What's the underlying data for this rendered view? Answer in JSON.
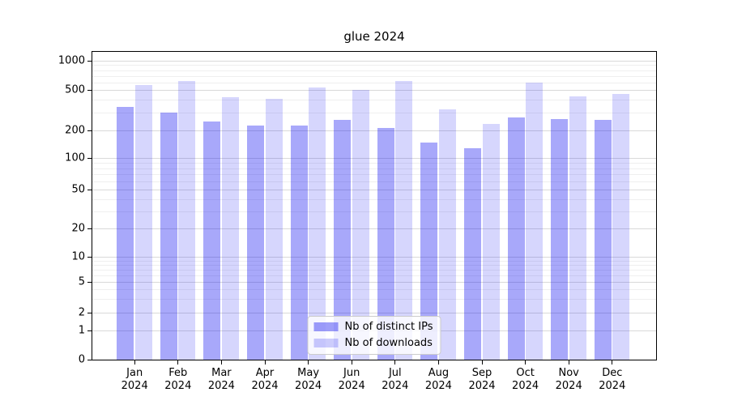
{
  "title": "glue 2024",
  "chart_data": {
    "type": "bar",
    "title": "glue 2024",
    "categories": [
      "Jan",
      "Feb",
      "Mar",
      "Apr",
      "May",
      "Jun",
      "Jul",
      "Aug",
      "Sep",
      "Oct",
      "Nov",
      "Dec"
    ],
    "year_suffix": "2024",
    "series": [
      {
        "name": "Nb of distinct IPs",
        "color": "#0000f0",
        "opacity": 0.34,
        "values": [
          340,
          300,
          245,
          225,
          222,
          252,
          210,
          147,
          127,
          267,
          260,
          253
        ]
      },
      {
        "name": "Nb of downloads",
        "color": "#0000f0",
        "opacity": 0.16,
        "values": [
          558,
          618,
          425,
          410,
          533,
          500,
          618,
          322,
          230,
          595,
          435,
          460
        ]
      }
    ],
    "xlabel": "",
    "ylabel": "",
    "yscale": "symlog",
    "ylim": [
      0,
      1200
    ],
    "yticks": [
      1000,
      500,
      200,
      100,
      50,
      20,
      10,
      5,
      2,
      1,
      0
    ],
    "yticks_minor": [
      3,
      4,
      6,
      7,
      8,
      9,
      30,
      40,
      60,
      70,
      80,
      90,
      300,
      400,
      600,
      700,
      800,
      900
    ],
    "grid": "on",
    "legend_position": "lower center"
  }
}
